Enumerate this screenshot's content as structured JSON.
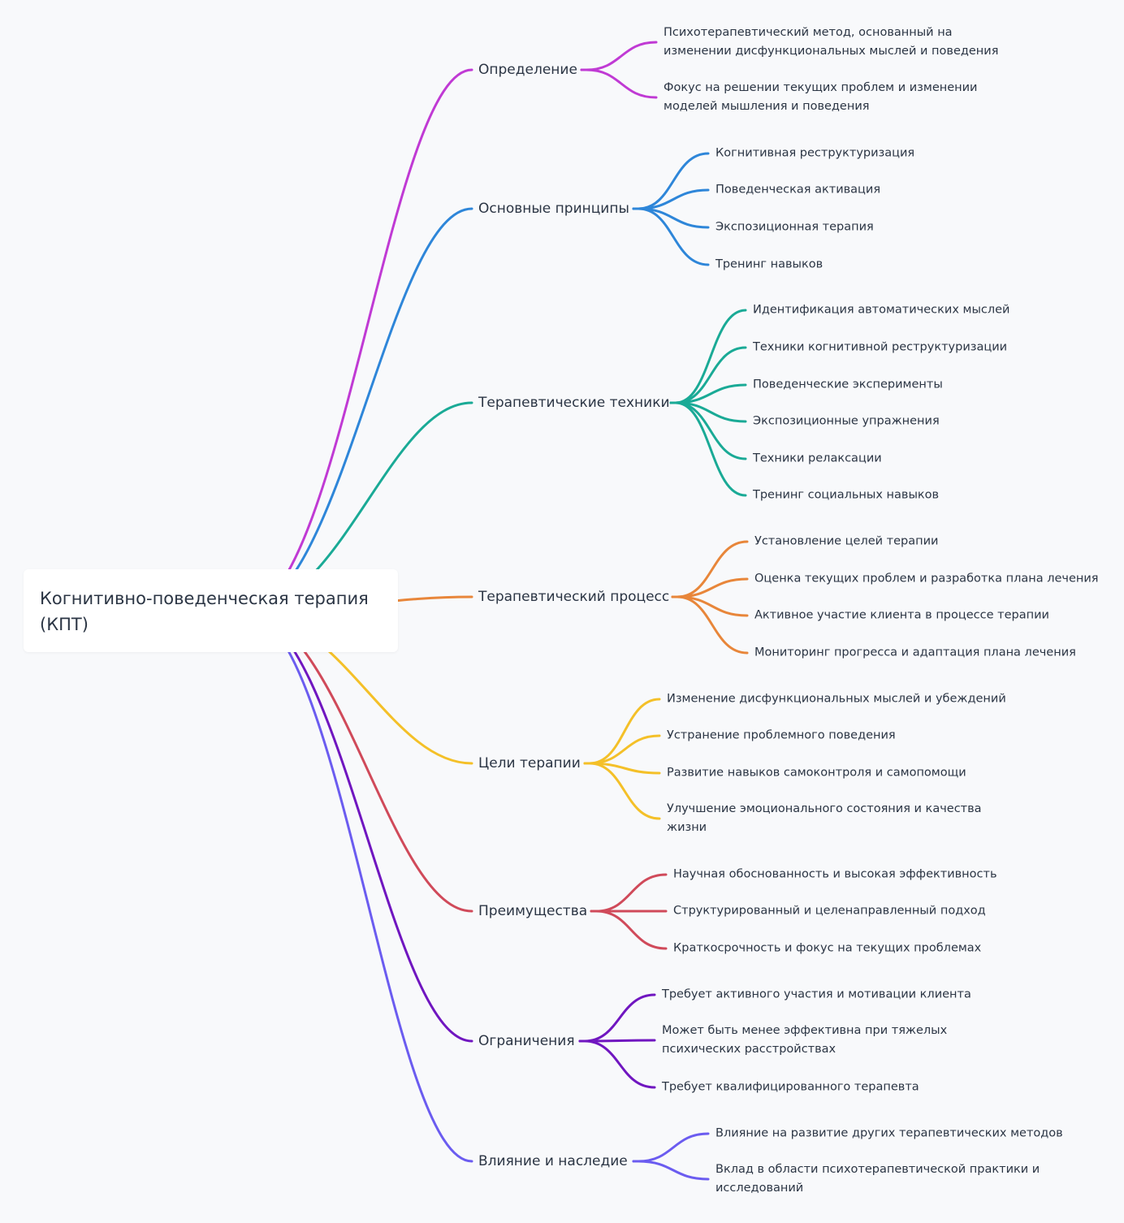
{
  "root": {
    "title": "Когнитивно-поведенческая терапия (КПТ)"
  },
  "branches": [
    {
      "label": "Определение",
      "color": "#c03ad4",
      "children": [
        "Психотерапевтический метод, основанный на\nизменении дисфункциональных мыслей и поведения",
        "Фокус на решении текущих проблем и изменении\nмоделей мышления и поведения"
      ]
    },
    {
      "label": "Основные принципы",
      "color": "#2e86d9",
      "children": [
        "Когнитивная реструктуризация",
        "Поведенческая активация",
        "Экспозиционная терапия",
        "Тренинг навыков"
      ]
    },
    {
      "label": "Терапевтические техники",
      "color": "#1aaa96",
      "children": [
        "Идентификация автоматических мыслей",
        "Техники когнитивной реструктуризации",
        "Поведенческие эксперименты",
        "Экспозиционные упражнения",
        "Техники релаксации",
        "Тренинг социальных навыков"
      ]
    },
    {
      "label": "Терапевтический процесс",
      "color": "#e8863a",
      "children": [
        "Установление целей терапии",
        "Оценка текущих проблем и разработка плана лечения",
        "Активное участие клиента в процессе терапии",
        "Мониторинг прогресса и адаптация плана лечения"
      ]
    },
    {
      "label": "Цели терапии",
      "color": "#f4c028",
      "children": [
        "Изменение дисфункциональных мыслей и убеждений",
        "Устранение проблемного поведения",
        "Развитие навыков самоконтроля и самопомощи",
        "Улучшение эмоционального состояния и качества\nжизни"
      ]
    },
    {
      "label": "Преимущества",
      "color": "#d04a5a",
      "children": [
        "Научная обоснованность и высокая эффективность",
        "Структурированный и целенаправленный подход",
        "Краткосрочность и фокус на текущих проблемах"
      ]
    },
    {
      "label": "Ограничения",
      "color": "#7016c0",
      "children": [
        "Требует активного участия и мотивации клиента",
        "Может быть менее эффективна при тяжелых\nпсихических расстройствах",
        "Требует квалифицированного терапевта"
      ]
    },
    {
      "label": "Влияние и наследие",
      "color": "#6b5cf0",
      "children": [
        "Влияние на развитие других терапевтических методов",
        "Вклад в области психотерапевтической практики и\nисследований"
      ]
    }
  ]
}
